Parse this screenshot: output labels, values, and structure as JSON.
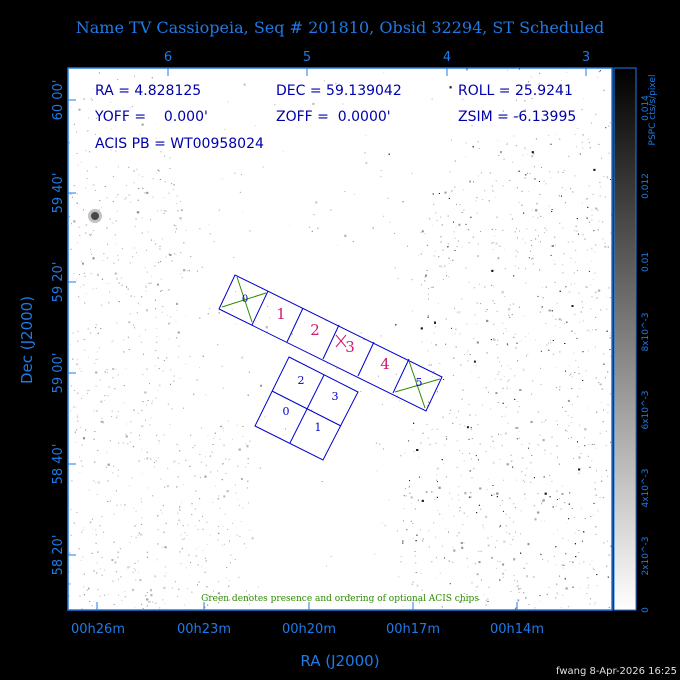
{
  "title": "Name TV Cassiopeia, Seq # 201810, Obsid 32294, ST Scheduled",
  "axes": {
    "top_ticks": [
      "6",
      "5",
      "4",
      "3"
    ],
    "bottom_ticks": [
      "00h26m",
      "00h23m",
      "00h20m",
      "00h17m",
      "00h14m"
    ],
    "left_ticks": [
      "60 00'",
      "59 40'",
      "59 20'",
      "59 00'",
      "58 40'",
      "58 20'"
    ],
    "xlabel": "RA (J2000)",
    "ylabel": "Dec (J2000)"
  },
  "info": {
    "ra": "RA = 4.828125",
    "dec": "DEC = 59.139042",
    "roll": "ROLL = 25.9241",
    "yoff": "YOFF =    0.000'",
    "zoff": "ZOFF =  0.0000'",
    "zsim": "ZSIM = -6.13995",
    "acis": "ACIS PB = WT00958024"
  },
  "colorbar": {
    "label": "PSPC cts/s/pixel",
    "ticks": [
      "0.014",
      "0.012",
      "0.01",
      "8x10^-3",
      "6x10^-3",
      "4x10^-3",
      "2x10^-3",
      "0"
    ]
  },
  "chips": {
    "row": [
      "0",
      "1",
      "2",
      "3",
      "4",
      "5"
    ],
    "block": [
      "2",
      "3",
      "0",
      "1"
    ]
  },
  "note": "Green denotes presence and ordering of optional ACIS chips",
  "footer": "fwang  8-Apr-2026 16:25",
  "colors": {
    "background": "#000000",
    "axis": "#1f7ae6",
    "chip_outline": "#0000cc",
    "chip_label_main": "#d01a6e",
    "chip_label_blue": "#0000cc",
    "optional": "#2e8b00"
  }
}
